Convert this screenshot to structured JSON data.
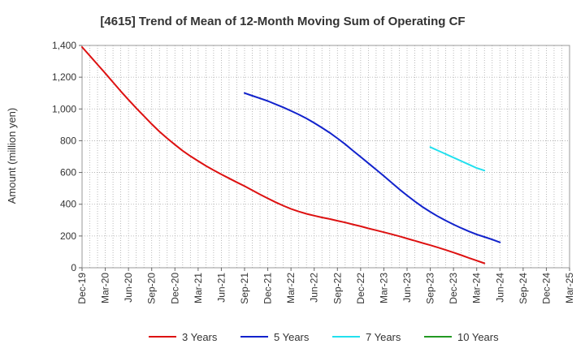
{
  "chart_data": {
    "type": "line",
    "title": "[4615]  Trend of Mean of 12-Month Moving Sum of Operating CF",
    "xlabel": "",
    "ylabel": "Amount (million yen)",
    "ylim": [
      0,
      1400
    ],
    "yticks": [
      0,
      200,
      400,
      600,
      800,
      1000,
      1200,
      1400
    ],
    "ytick_labels": [
      "0",
      "200",
      "400",
      "600",
      "800",
      "1,000",
      "1,200",
      "1,400"
    ],
    "x_start": "Dec-19",
    "x_end": "Mar-25",
    "x_tick_labels": [
      "Dec-19",
      "Mar-20",
      "Jun-20",
      "Sep-20",
      "Dec-20",
      "Mar-21",
      "Jun-21",
      "Sep-21",
      "Dec-21",
      "Mar-22",
      "Jun-22",
      "Sep-22",
      "Dec-22",
      "Mar-23",
      "Jun-23",
      "Sep-23",
      "Dec-23",
      "Mar-24",
      "Jun-24",
      "Sep-24",
      "Dec-24",
      "Mar-25"
    ],
    "grid": true,
    "legend_position": "bottom",
    "series": [
      {
        "name": "3 Years",
        "color": "#dd1111",
        "start_month": 0,
        "values": [
          1390,
          1335,
          1280,
          1225,
          1168,
          1112,
          1058,
          1005,
          955,
          905,
          858,
          815,
          775,
          737,
          703,
          672,
          642,
          614,
          588,
          563,
          538,
          514,
          488,
          462,
          437,
          413,
          391,
          371,
          354,
          340,
          328,
          317,
          307,
          296,
          285,
          273,
          261,
          248,
          236,
          224,
          211,
          198,
          184,
          170,
          156,
          142,
          127,
          112,
          96,
          79,
          62,
          45,
          28
        ]
      },
      {
        "name": "5 Years",
        "color": "#1122cc",
        "start_month": 21,
        "values": [
          1100,
          1083,
          1067,
          1050,
          1030,
          1010,
          988,
          965,
          940,
          912,
          882,
          850,
          815,
          778,
          738,
          698,
          658,
          618,
          578,
          536,
          494,
          455,
          418,
          383,
          352,
          323,
          297,
          273,
          250,
          229,
          210,
          194,
          178,
          160
        ]
      },
      {
        "name": "7 Years",
        "color": "#22e0ee",
        "start_month": 45,
        "values": [
          760,
          738,
          716,
          694,
          672,
          650,
          628,
          612
        ]
      },
      {
        "name": "10 Years",
        "color": "#229922",
        "start_month": 0,
        "values": []
      }
    ]
  }
}
